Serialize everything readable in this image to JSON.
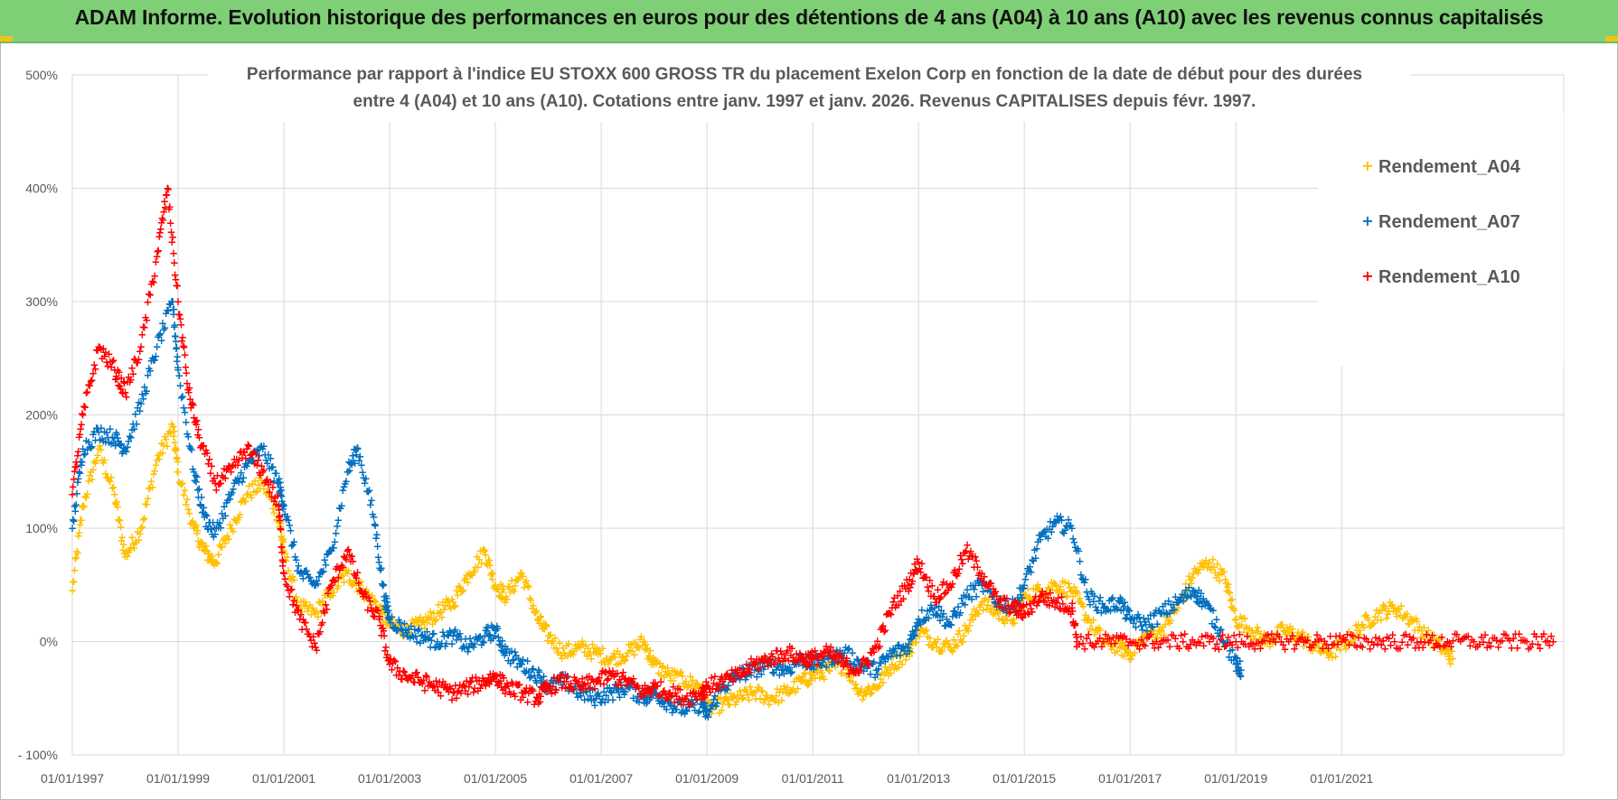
{
  "header": {
    "title": "ADAM Informe. Evolution historique des performances en euros pour des détentions de 4 ans (A04) à 10 ans (A10) avec les revenus connus capitalisés"
  },
  "colors": {
    "header_bg": "#7fcf76",
    "A04": "#ffc000",
    "A07": "#0070c0",
    "A10": "#ff0000",
    "grid": "#d9d9d9",
    "text": "#595959"
  },
  "chart_data": {
    "type": "scatter",
    "title_lines": [
      "Performance par rapport à l'indice EU STOXX 600 GROSS TR  du placement Exelon Corp en fonction de la date de début pour des durées",
      "entre 4 (A04) et 10 ans (A10).  Cotations entre janv. 1997 et janv. 2026. Revenus CAPITALISES depuis févr. 1997."
    ],
    "xlabel": "",
    "ylabel": "",
    "x_range": [
      1997.0,
      2025.2
    ],
    "ylim": [
      -100,
      500
    ],
    "y_ticks": [
      -100,
      0,
      100,
      200,
      300,
      400,
      500
    ],
    "y_tick_labels": [
      "- 100%",
      "0%",
      "100%",
      "200%",
      "300%",
      "400%",
      "500%"
    ],
    "x_ticks": [
      1997,
      1999,
      2001,
      2003,
      2005,
      2007,
      2009,
      2011,
      2013,
      2015,
      2017,
      2019,
      2021
    ],
    "x_tick_labels": [
      "01/01/1997",
      "01/01/1999",
      "01/01/2001",
      "01/01/2003",
      "01/01/2005",
      "01/01/2007",
      "01/01/2009",
      "01/01/2011",
      "01/01/2013",
      "01/01/2015",
      "01/01/2017",
      "01/01/2019",
      "01/01/2021"
    ],
    "grid": true,
    "legend_position": "top-right",
    "series": [
      {
        "name": "Rendement_A04",
        "color": "#ffc000",
        "points": [
          [
            1997.0,
            45
          ],
          [
            1997.2,
            120
          ],
          [
            1997.5,
            170
          ],
          [
            1997.8,
            130
          ],
          [
            1998.0,
            75
          ],
          [
            1998.3,
            100
          ],
          [
            1998.6,
            160
          ],
          [
            1998.9,
            190
          ],
          [
            1999.0,
            150
          ],
          [
            1999.3,
            100
          ],
          [
            1999.5,
            80
          ],
          [
            1999.7,
            70
          ],
          [
            2000.0,
            100
          ],
          [
            2000.3,
            130
          ],
          [
            2000.6,
            140
          ],
          [
            2000.9,
            110
          ],
          [
            2001.0,
            80
          ],
          [
            2001.3,
            30
          ],
          [
            2001.6,
            25
          ],
          [
            2001.9,
            45
          ],
          [
            2002.2,
            60
          ],
          [
            2002.5,
            45
          ],
          [
            2002.8,
            30
          ],
          [
            2003.0,
            15
          ],
          [
            2003.3,
            10
          ],
          [
            2003.6,
            15
          ],
          [
            2003.9,
            25
          ],
          [
            2004.2,
            35
          ],
          [
            2004.5,
            60
          ],
          [
            2004.8,
            80
          ],
          [
            2005.0,
            50
          ],
          [
            2005.2,
            40
          ],
          [
            2005.5,
            60
          ],
          [
            2005.8,
            20
          ],
          [
            2006.0,
            5
          ],
          [
            2006.3,
            -10
          ],
          [
            2006.6,
            -5
          ],
          [
            2006.9,
            -10
          ],
          [
            2007.2,
            -15
          ],
          [
            2007.5,
            -10
          ],
          [
            2007.8,
            0
          ],
          [
            2008.0,
            -20
          ],
          [
            2008.3,
            -30
          ],
          [
            2008.6,
            -35
          ],
          [
            2008.9,
            -40
          ],
          [
            2009.0,
            -60
          ],
          [
            2009.3,
            -55
          ],
          [
            2009.6,
            -50
          ],
          [
            2009.9,
            -45
          ],
          [
            2010.2,
            -50
          ],
          [
            2010.5,
            -45
          ],
          [
            2010.8,
            -35
          ],
          [
            2011.0,
            -30
          ],
          [
            2011.3,
            -25
          ],
          [
            2011.6,
            -20
          ],
          [
            2011.9,
            -45
          ],
          [
            2012.2,
            -40
          ],
          [
            2012.5,
            -20
          ],
          [
            2012.8,
            -10
          ],
          [
            2013.0,
            10
          ],
          [
            2013.3,
            0
          ],
          [
            2013.6,
            -5
          ],
          [
            2013.9,
            10
          ],
          [
            2014.2,
            35
          ],
          [
            2014.5,
            25
          ],
          [
            2014.8,
            20
          ],
          [
            2015.0,
            40
          ],
          [
            2015.3,
            45
          ],
          [
            2015.6,
            50
          ],
          [
            2015.9,
            45
          ],
          [
            2016.2,
            20
          ],
          [
            2016.5,
            0
          ],
          [
            2016.8,
            -5
          ],
          [
            2017.0,
            -10
          ],
          [
            2017.3,
            5
          ],
          [
            2017.6,
            10
          ],
          [
            2017.9,
            30
          ],
          [
            2018.2,
            60
          ],
          [
            2018.5,
            70
          ],
          [
            2018.8,
            55
          ],
          [
            2019.0,
            20
          ],
          [
            2019.3,
            10
          ],
          [
            2019.6,
            0
          ],
          [
            2019.9,
            10
          ],
          [
            2020.2,
            5
          ],
          [
            2020.5,
            -5
          ],
          [
            2020.8,
            -10
          ],
          [
            2021.1,
            0
          ],
          [
            2021.4,
            15
          ],
          [
            2021.7,
            25
          ],
          [
            2022.0,
            30
          ],
          [
            2022.3,
            20
          ],
          [
            2022.6,
            5
          ],
          [
            2022.9,
            -5
          ],
          [
            2023.1,
            -15
          ]
        ]
      },
      {
        "name": "Rendement_A07",
        "color": "#0070c0",
        "points": [
          [
            1997.0,
            100
          ],
          [
            1997.2,
            170
          ],
          [
            1997.5,
            185
          ],
          [
            1997.8,
            180
          ],
          [
            1998.0,
            170
          ],
          [
            1998.3,
            210
          ],
          [
            1998.6,
            260
          ],
          [
            1998.9,
            300
          ],
          [
            1999.0,
            240
          ],
          [
            1999.3,
            150
          ],
          [
            1999.5,
            110
          ],
          [
            1999.7,
            95
          ],
          [
            2000.0,
            130
          ],
          [
            2000.3,
            155
          ],
          [
            2000.6,
            170
          ],
          [
            2000.9,
            140
          ],
          [
            2001.0,
            120
          ],
          [
            2001.3,
            60
          ],
          [
            2001.6,
            50
          ],
          [
            2001.9,
            80
          ],
          [
            2002.2,
            150
          ],
          [
            2002.4,
            170
          ],
          [
            2002.7,
            110
          ],
          [
            2002.9,
            40
          ],
          [
            2003.0,
            20
          ],
          [
            2003.3,
            10
          ],
          [
            2003.6,
            5
          ],
          [
            2003.9,
            0
          ],
          [
            2004.2,
            5
          ],
          [
            2004.5,
            -5
          ],
          [
            2004.8,
            5
          ],
          [
            2005.0,
            10
          ],
          [
            2005.2,
            -10
          ],
          [
            2005.5,
            -20
          ],
          [
            2005.8,
            -30
          ],
          [
            2006.0,
            -40
          ],
          [
            2006.3,
            -35
          ],
          [
            2006.6,
            -45
          ],
          [
            2006.9,
            -50
          ],
          [
            2007.2,
            -45
          ],
          [
            2007.5,
            -40
          ],
          [
            2007.8,
            -50
          ],
          [
            2008.0,
            -45
          ],
          [
            2008.3,
            -55
          ],
          [
            2008.6,
            -60
          ],
          [
            2008.9,
            -55
          ],
          [
            2009.0,
            -65
          ],
          [
            2009.3,
            -40
          ],
          [
            2009.6,
            -30
          ],
          [
            2009.9,
            -25
          ],
          [
            2010.2,
            -20
          ],
          [
            2010.5,
            -25
          ],
          [
            2010.8,
            -15
          ],
          [
            2011.0,
            -20
          ],
          [
            2011.3,
            -15
          ],
          [
            2011.6,
            -10
          ],
          [
            2011.9,
            -20
          ],
          [
            2012.2,
            -25
          ],
          [
            2012.5,
            -10
          ],
          [
            2012.8,
            -5
          ],
          [
            2013.0,
            20
          ],
          [
            2013.3,
            30
          ],
          [
            2013.6,
            15
          ],
          [
            2013.9,
            40
          ],
          [
            2014.2,
            50
          ],
          [
            2014.5,
            35
          ],
          [
            2014.8,
            30
          ],
          [
            2015.0,
            50
          ],
          [
            2015.3,
            90
          ],
          [
            2015.6,
            105
          ],
          [
            2015.9,
            100
          ],
          [
            2016.2,
            40
          ],
          [
            2016.5,
            30
          ],
          [
            2016.8,
            35
          ],
          [
            2017.0,
            20
          ],
          [
            2017.3,
            15
          ],
          [
            2017.6,
            25
          ],
          [
            2017.9,
            35
          ],
          [
            2018.2,
            45
          ],
          [
            2018.4,
            35
          ],
          [
            2018.7,
            10
          ],
          [
            2019.0,
            -20
          ],
          [
            2019.1,
            -25
          ]
        ]
      },
      {
        "name": "Rendement_A10",
        "color": "#ff0000",
        "points": [
          [
            1997.0,
            130
          ],
          [
            1997.2,
            200
          ],
          [
            1997.5,
            260
          ],
          [
            1997.8,
            240
          ],
          [
            1998.0,
            220
          ],
          [
            1998.3,
            260
          ],
          [
            1998.6,
            340
          ],
          [
            1998.8,
            400
          ],
          [
            1999.0,
            300
          ],
          [
            1999.2,
            220
          ],
          [
            1999.4,
            180
          ],
          [
            1999.7,
            140
          ],
          [
            2000.0,
            150
          ],
          [
            2000.3,
            170
          ],
          [
            2000.6,
            150
          ],
          [
            2000.9,
            120
          ],
          [
            2001.0,
            60
          ],
          [
            2001.3,
            20
          ],
          [
            2001.6,
            -5
          ],
          [
            2001.9,
            50
          ],
          [
            2002.2,
            80
          ],
          [
            2002.5,
            40
          ],
          [
            2002.8,
            20
          ],
          [
            2003.0,
            -20
          ],
          [
            2003.3,
            -30
          ],
          [
            2003.6,
            -35
          ],
          [
            2003.9,
            -40
          ],
          [
            2004.2,
            -45
          ],
          [
            2004.5,
            -40
          ],
          [
            2004.8,
            -35
          ],
          [
            2005.0,
            -30
          ],
          [
            2005.2,
            -40
          ],
          [
            2005.5,
            -45
          ],
          [
            2005.8,
            -50
          ],
          [
            2006.0,
            -40
          ],
          [
            2006.3,
            -35
          ],
          [
            2006.6,
            -40
          ],
          [
            2006.9,
            -35
          ],
          [
            2007.2,
            -30
          ],
          [
            2007.5,
            -35
          ],
          [
            2007.8,
            -45
          ],
          [
            2008.0,
            -40
          ],
          [
            2008.3,
            -45
          ],
          [
            2008.6,
            -50
          ],
          [
            2008.9,
            -45
          ],
          [
            2009.0,
            -40
          ],
          [
            2009.3,
            -35
          ],
          [
            2009.6,
            -30
          ],
          [
            2009.9,
            -20
          ],
          [
            2010.2,
            -15
          ],
          [
            2010.5,
            -10
          ],
          [
            2010.8,
            -15
          ],
          [
            2011.0,
            -15
          ],
          [
            2011.3,
            -10
          ],
          [
            2011.6,
            -20
          ],
          [
            2011.9,
            -25
          ],
          [
            2012.2,
            -5
          ],
          [
            2012.5,
            30
          ],
          [
            2012.8,
            50
          ],
          [
            2013.0,
            70
          ],
          [
            2013.3,
            40
          ],
          [
            2013.6,
            50
          ],
          [
            2013.9,
            80
          ],
          [
            2014.2,
            60
          ],
          [
            2014.5,
            35
          ],
          [
            2014.8,
            30
          ],
          [
            2015.0,
            25
          ],
          [
            2015.3,
            40
          ],
          [
            2015.6,
            35
          ],
          [
            2015.9,
            30
          ],
          [
            2016.0,
            0
          ],
          [
            2016.5,
            0
          ],
          [
            2017.0,
            0
          ],
          [
            2017.5,
            0
          ],
          [
            2018.0,
            0
          ],
          [
            2018.5,
            0
          ],
          [
            2019.0,
            0
          ],
          [
            2019.5,
            0
          ],
          [
            2020.0,
            0
          ],
          [
            2020.5,
            0
          ],
          [
            2021.0,
            0
          ],
          [
            2021.5,
            0
          ],
          [
            2022.0,
            0
          ],
          [
            2022.5,
            0
          ],
          [
            2023.0,
            0
          ],
          [
            2023.5,
            0
          ],
          [
            2024.0,
            0
          ],
          [
            2024.5,
            0
          ],
          [
            2025.0,
            0
          ]
        ]
      }
    ]
  }
}
